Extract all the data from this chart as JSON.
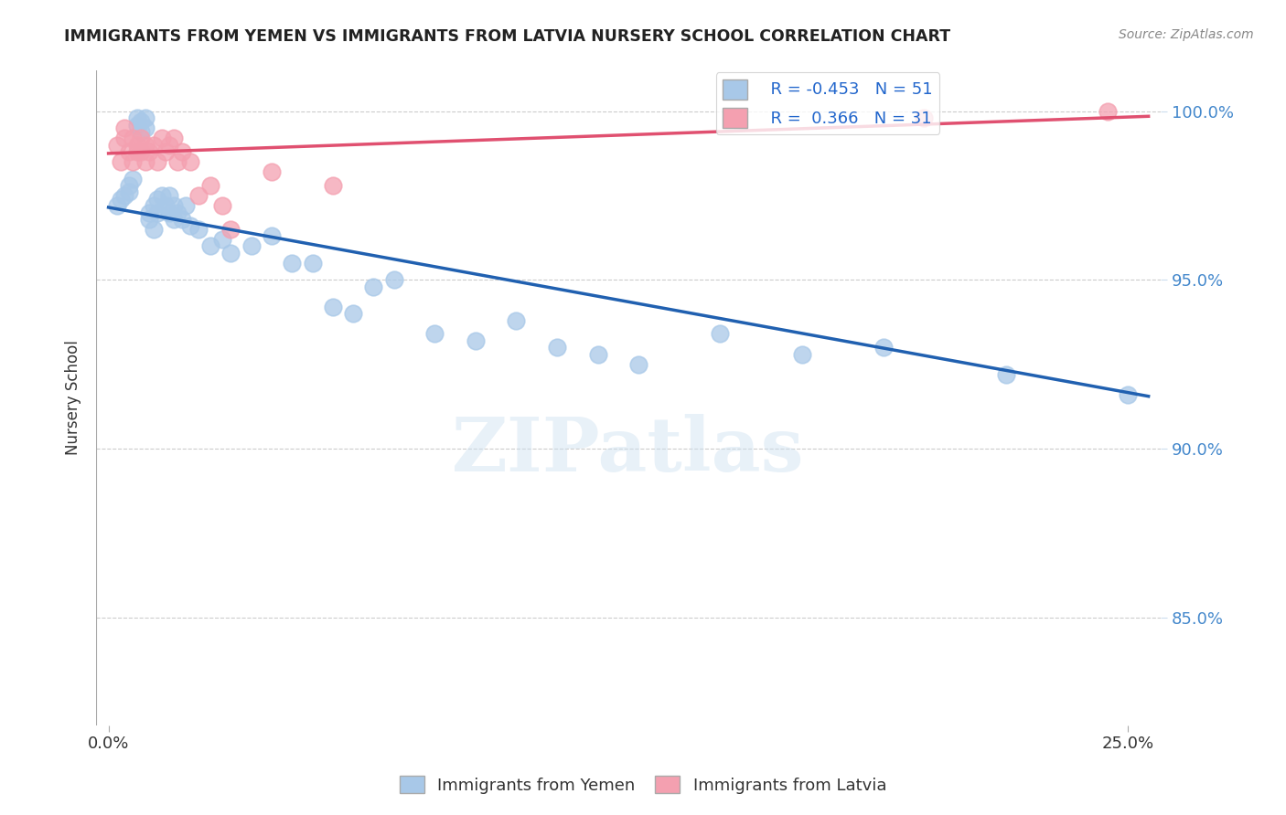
{
  "title": "IMMIGRANTS FROM YEMEN VS IMMIGRANTS FROM LATVIA NURSERY SCHOOL CORRELATION CHART",
  "source": "Source: ZipAtlas.com",
  "ylabel": "Nursery School",
  "ylim": [
    0.818,
    1.012
  ],
  "xlim": [
    -0.003,
    0.258
  ],
  "ytick_vals": [
    0.85,
    0.9,
    0.95,
    1.0
  ],
  "ytick_labels": [
    "85.0%",
    "90.0%",
    "95.0%",
    "100.0%"
  ],
  "xtick_vals": [
    0.0,
    0.25
  ],
  "xtick_labels": [
    "0.0%",
    "25.0%"
  ],
  "yemen_R": -0.453,
  "yemen_N": 51,
  "latvia_R": 0.366,
  "latvia_N": 31,
  "yemen_color": "#a8c8e8",
  "latvia_color": "#f4a0b0",
  "trend_yemen_color": "#2060b0",
  "trend_latvia_color": "#e05070",
  "background_color": "#ffffff",
  "yemen_x": [
    0.002,
    0.003,
    0.004,
    0.005,
    0.005,
    0.006,
    0.007,
    0.007,
    0.008,
    0.008,
    0.009,
    0.009,
    0.01,
    0.01,
    0.011,
    0.011,
    0.012,
    0.012,
    0.013,
    0.014,
    0.015,
    0.015,
    0.016,
    0.016,
    0.017,
    0.018,
    0.019,
    0.02,
    0.022,
    0.025,
    0.028,
    0.03,
    0.035,
    0.04,
    0.045,
    0.05,
    0.055,
    0.06,
    0.065,
    0.07,
    0.08,
    0.09,
    0.1,
    0.11,
    0.12,
    0.13,
    0.15,
    0.17,
    0.19,
    0.22,
    0.25
  ],
  "yemen_y": [
    0.972,
    0.974,
    0.975,
    0.978,
    0.976,
    0.98,
    0.998,
    0.996,
    0.997,
    0.994,
    0.998,
    0.995,
    0.97,
    0.968,
    0.972,
    0.965,
    0.974,
    0.97,
    0.975,
    0.972,
    0.975,
    0.97,
    0.968,
    0.972,
    0.97,
    0.968,
    0.972,
    0.966,
    0.965,
    0.96,
    0.962,
    0.958,
    0.96,
    0.963,
    0.955,
    0.955,
    0.942,
    0.94,
    0.948,
    0.95,
    0.934,
    0.932,
    0.938,
    0.93,
    0.928,
    0.925,
    0.934,
    0.928,
    0.93,
    0.922,
    0.916
  ],
  "latvia_x": [
    0.002,
    0.003,
    0.004,
    0.004,
    0.005,
    0.006,
    0.006,
    0.007,
    0.007,
    0.008,
    0.008,
    0.009,
    0.009,
    0.01,
    0.011,
    0.012,
    0.013,
    0.014,
    0.015,
    0.016,
    0.017,
    0.018,
    0.02,
    0.022,
    0.025,
    0.028,
    0.03,
    0.04,
    0.055,
    0.2,
    0.245
  ],
  "latvia_y": [
    0.99,
    0.985,
    0.995,
    0.992,
    0.988,
    0.992,
    0.985,
    0.99,
    0.988,
    0.992,
    0.988,
    0.99,
    0.985,
    0.988,
    0.99,
    0.985,
    0.992,
    0.988,
    0.99,
    0.992,
    0.985,
    0.988,
    0.985,
    0.975,
    0.978,
    0.972,
    0.965,
    0.982,
    0.978,
    0.998,
    1.0
  ],
  "trend_yemen_x0": 0.0,
  "trend_yemen_y0": 0.9715,
  "trend_yemen_x1": 0.255,
  "trend_yemen_y1": 0.9155,
  "trend_latvia_x0": 0.0,
  "trend_latvia_y0": 0.9875,
  "trend_latvia_x1": 0.255,
  "trend_latvia_y1": 0.9985
}
